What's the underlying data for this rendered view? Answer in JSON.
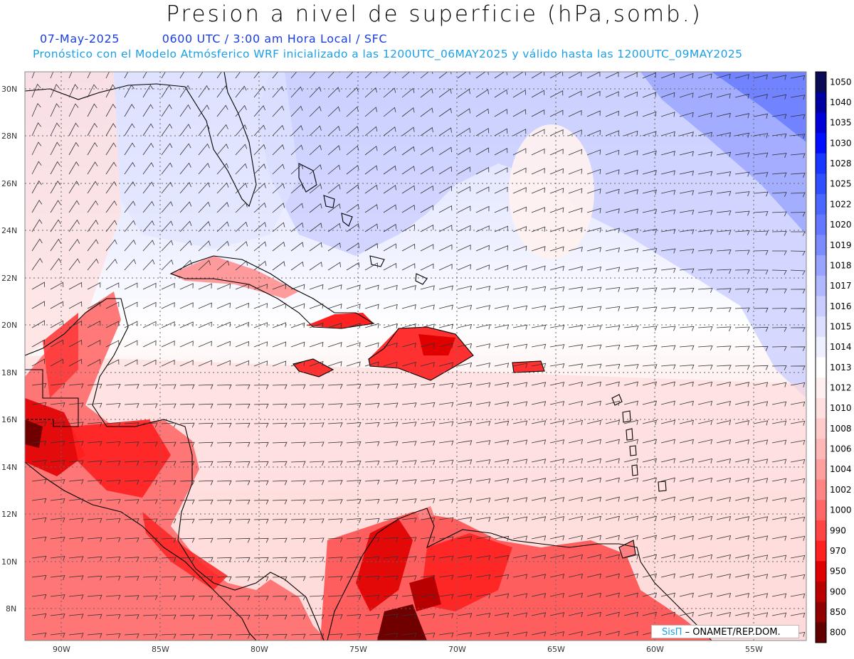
{
  "header": {
    "title": "Presion a nivel de superficie (hPa,somb.)",
    "date": "07-May-2025",
    "time": "0600 UTC / 3:00 am Hora Local / SFC",
    "forecast_note": "Pronóstico con el Modelo Atmósferico WRF inicializado a las 1200UTC_06MAY2025 y válido hasta las  1200UTC_09MAY2025"
  },
  "axes": {
    "lat_labels": [
      "30N",
      "28N",
      "26N",
      "24N",
      "22N",
      "20N",
      "18N",
      "16N",
      "14N",
      "12N",
      "10N",
      "8N"
    ],
    "lon_labels": [
      "90W",
      "85W",
      "80W",
      "75W",
      "70W",
      "65W",
      "60W",
      "55W"
    ]
  },
  "colorbar": {
    "labels": [
      "1050",
      "1040",
      "1035",
      "1030",
      "1028",
      "1025",
      "1022",
      "1020",
      "1019",
      "1018",
      "1017",
      "1016",
      "1015",
      "1014",
      "1013",
      "1012",
      "1010",
      "1008",
      "1006",
      "1004",
      "1002",
      "1000",
      "990",
      "970",
      "950",
      "900",
      "850",
      "800"
    ],
    "colors": [
      "#0a0a55",
      "#0000a0",
      "#0000d8",
      "#0010ff",
      "#1838ff",
      "#3050ff",
      "#4a68ff",
      "#6478ff",
      "#7c8cff",
      "#98a4ff",
      "#b0b8ff",
      "#c8ccff",
      "#dcdfff",
      "#eef0ff",
      "#ffffff",
      "#fff0f0",
      "#ffe0e0",
      "#ffcccc",
      "#ffb8b8",
      "#ffa0a0",
      "#ff8484",
      "#ff6666",
      "#ff4444",
      "#ff2020",
      "#e00000",
      "#b80000",
      "#900000",
      "#600000"
    ]
  },
  "credit": {
    "sis": "SisΠ",
    "org": "– ONAMET/REP.DOM."
  }
}
